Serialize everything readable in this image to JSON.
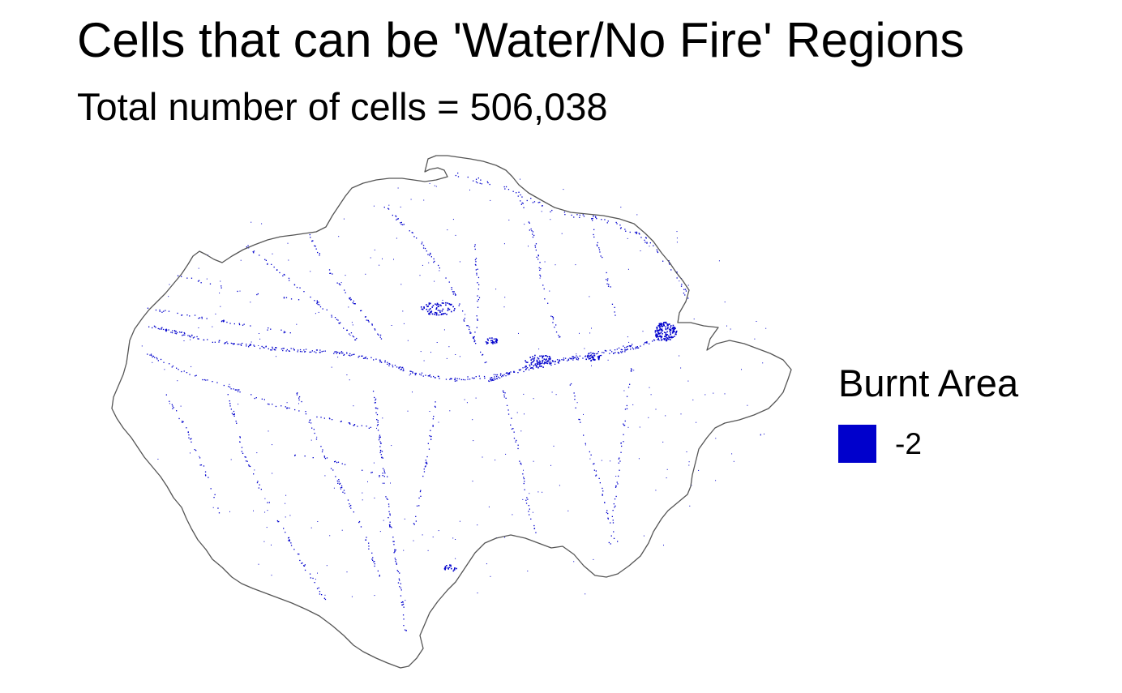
{
  "map": {
    "title": "Cells that can be 'Water/No Fire' Regions",
    "subtitle": "Total number of cells = 506,038",
    "boundary_color": "#555555",
    "cell_color": "#0000cc"
  },
  "legend": {
    "title": "Burnt Area",
    "items": [
      {
        "label": "-2",
        "color": "#0000cc"
      }
    ]
  }
}
